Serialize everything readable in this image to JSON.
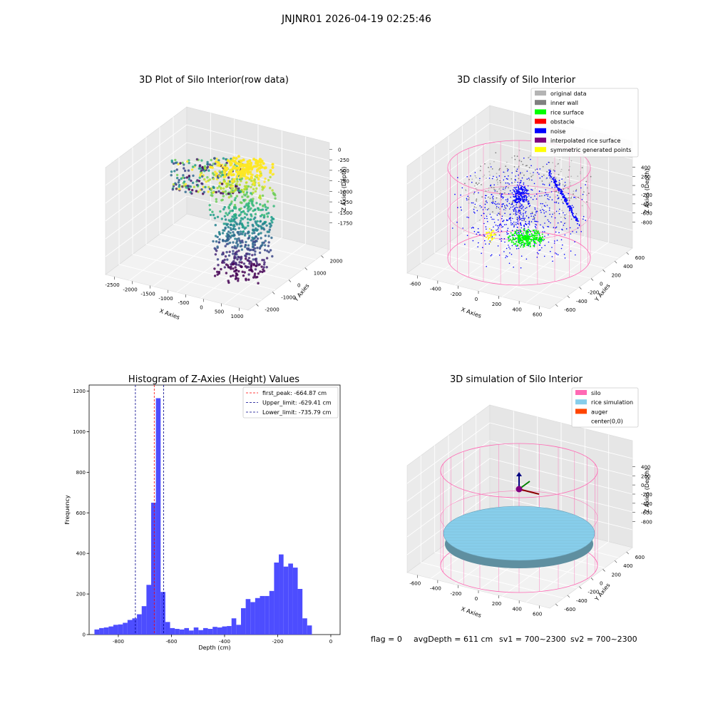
{
  "figure": {
    "suptitle": "JNJNR01 2026-04-19 02:25:46",
    "footer": {
      "flag": "flag = 0",
      "avg": "avgDepth = 611 cm",
      "sv1": "sv1 = 700~2300",
      "sv2": "sv2 = 700~2300"
    }
  },
  "chart_data": [
    {
      "type": "scatter",
      "title": "3D Plot of Silo Interior(row data)",
      "xlabel": "X Axies",
      "ylabel": "Y Axies",
      "zlabel": "Z Axies (Depth)",
      "x_ticks": [
        -2500,
        -2000,
        -1500,
        -1000,
        -500,
        0,
        500,
        1000
      ],
      "y_ticks": [
        -2000,
        -1000,
        0,
        1000,
        2000
      ],
      "z_ticks": [
        -1750,
        -1500,
        -1250,
        -1000,
        -750,
        -500,
        -250,
        0
      ],
      "colormap": "viridis",
      "grid": true
    },
    {
      "type": "scatter",
      "title": "3D classify of Silo Interior",
      "xlabel": "X Axies",
      "ylabel": "Y Axies",
      "zlabel": "Z Axies (Depth)",
      "x_ticks": [
        -600,
        -400,
        -200,
        0,
        200,
        400,
        600
      ],
      "y_ticks": [
        -600,
        -400,
        -200,
        0,
        200,
        400,
        600
      ],
      "z_ticks": [
        -800,
        -600,
        -400,
        -200,
        0,
        200,
        400
      ],
      "legend_position": "top-right",
      "legend": [
        {
          "label": "original data",
          "color": "#b4b4b4"
        },
        {
          "label": "inner wall",
          "color": "#808080"
        },
        {
          "label": "rice surface",
          "color": "#00ff00"
        },
        {
          "label": "obstacle",
          "color": "#ff0000"
        },
        {
          "label": "noise",
          "color": "#0000ff"
        },
        {
          "label": "interpolated rice surface",
          "color": "#800080"
        },
        {
          "label": "symmetric generated points",
          "color": "#ffff00"
        }
      ],
      "silo_color": "#ff69b4",
      "grid": true
    },
    {
      "type": "bar",
      "title": "Histogram of Z-Axies (Height) Values",
      "xlabel": "Depth (cm)",
      "ylabel": "Frequency",
      "xlim": [
        -910,
        35
      ],
      "ylim": [
        0,
        1230
      ],
      "x_ticks": [
        -800,
        -600,
        -400,
        -200,
        0
      ],
      "y_ticks": [
        0,
        200,
        400,
        600,
        800,
        1000,
        1200
      ],
      "bar_color": "#4d4dff",
      "bin_start": -890,
      "bin_width": 17.8,
      "values": [
        25,
        32,
        35,
        40,
        48,
        50,
        58,
        72,
        80,
        100,
        140,
        245,
        650,
        1165,
        210,
        62,
        32,
        28,
        25,
        32,
        20,
        35,
        22,
        32,
        28,
        38,
        35,
        40,
        42,
        80,
        48,
        130,
        175,
        160,
        180,
        190,
        190,
        215,
        355,
        395,
        335,
        350,
        330,
        225,
        80,
        45
      ],
      "lines": [
        {
          "label": "first_peak: -664.87 cm",
          "x": -664.87,
          "color": "#ff0000"
        },
        {
          "label": "Upper_limit: -629.41 cm",
          "x": -629.41,
          "color": "#00008b"
        },
        {
          "label": "Lower_limit: -735.79 cm",
          "x": -735.79,
          "color": "#00008b"
        }
      ],
      "legend_position": "top-right"
    },
    {
      "type": "scatter",
      "title": "3D simulation of Silo Interior",
      "xlabel": "X Axies",
      "ylabel": "Y Axies",
      "zlabel": "Z Axies (Depth)",
      "x_ticks": [
        -600,
        -400,
        -200,
        0,
        200,
        400,
        600
      ],
      "y_ticks": [
        -600,
        -400,
        -200,
        0,
        200,
        400,
        600
      ],
      "z_ticks": [
        -800,
        -600,
        -400,
        -200,
        0,
        200,
        400
      ],
      "legend_position": "top-right",
      "legend": [
        {
          "label": "silo",
          "color": "#ff69b4"
        },
        {
          "label": "rice simulation",
          "color": "#87ceeb"
        },
        {
          "label": "auger",
          "color": "#ff4500"
        },
        {
          "label": "center(0,0)",
          "color": ""
        }
      ],
      "grid": true
    }
  ]
}
